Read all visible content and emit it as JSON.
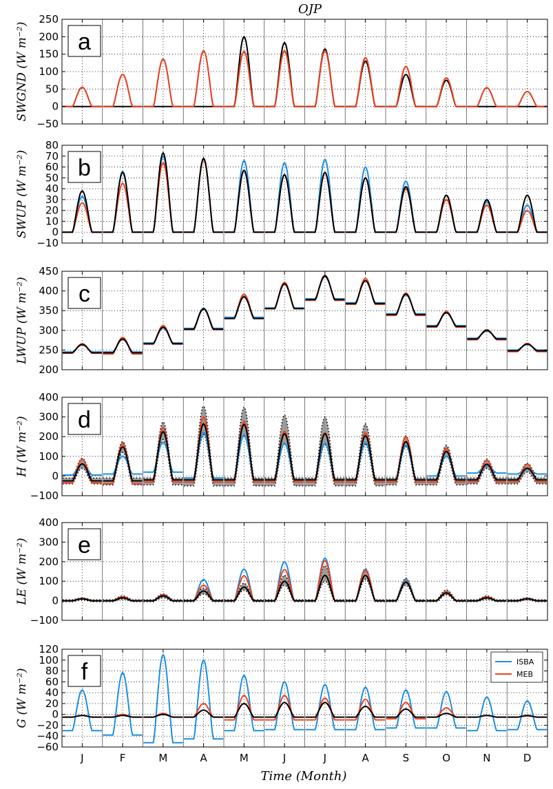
{
  "title": "OJP",
  "xlabel": "Time (Month)",
  "colors": {
    "ISBA": "#1b8fe0",
    "MEB": "#f2401c",
    "Obs": "#000000",
    "Obs_range": "#8c8c8c"
  },
  "chart_data": {
    "type": "line",
    "months": [
      "J",
      "F",
      "M",
      "A",
      "M",
      "J",
      "J",
      "A",
      "S",
      "O",
      "N",
      "D"
    ],
    "legend": {
      "placement": "top-right",
      "panel": "f",
      "entries": [
        "ISBA",
        "MEB"
      ]
    },
    "panels": [
      {
        "id": "a",
        "label": "a",
        "ylabel": "SWGND (W m⁻²)",
        "ylim": [
          -50,
          250
        ],
        "yticks": [
          -50,
          0,
          50,
          100,
          150,
          200,
          250
        ],
        "diurnal_peaks": {
          "Obs": [
            0,
            0,
            0,
            0,
            200,
            183,
            165,
            130,
            92,
            75,
            0,
            0
          ],
          "ISBA": [
            55,
            92,
            136,
            160,
            158,
            160,
            160,
            140,
            115,
            82,
            54,
            43
          ],
          "MEB": [
            55,
            92,
            136,
            160,
            158,
            160,
            160,
            140,
            115,
            82,
            54,
            43
          ]
        },
        "baseline": {
          "Obs": [
            0,
            0,
            0,
            0,
            0,
            0,
            0,
            0,
            0,
            0,
            0,
            0
          ],
          "ISBA": [
            0,
            0,
            0,
            0,
            0,
            0,
            0,
            0,
            0,
            0,
            0,
            0
          ],
          "MEB": [
            0,
            0,
            0,
            0,
            0,
            0,
            0,
            0,
            0,
            0,
            0,
            0
          ]
        }
      },
      {
        "id": "b",
        "label": "b",
        "ylabel": "SWUP (W m⁻²)",
        "ylim": [
          -10,
          80
        ],
        "yticks": [
          -10,
          0,
          10,
          20,
          30,
          40,
          50,
          60,
          70,
          80
        ],
        "diurnal_peaks": {
          "Obs": [
            38,
            55,
            73,
            68,
            57,
            53,
            55,
            50,
            42,
            34,
            30,
            34
          ],
          "ISBA": [
            33,
            56,
            70,
            68,
            66,
            64,
            67,
            60,
            47,
            34,
            28,
            25
          ],
          "MEB": [
            27,
            45,
            64,
            67,
            57,
            53,
            55,
            50,
            40,
            30,
            25,
            20
          ]
        },
        "baseline": {
          "Obs": [
            0,
            0,
            0,
            0,
            0,
            0,
            0,
            0,
            0,
            0,
            0,
            0
          ],
          "ISBA": [
            0,
            0,
            0,
            0,
            0,
            0,
            0,
            0,
            0,
            0,
            0,
            0
          ],
          "MEB": [
            0,
            0,
            0,
            0,
            0,
            0,
            0,
            0,
            0,
            0,
            0,
            0
          ]
        }
      },
      {
        "id": "c",
        "label": "c",
        "ylabel": "LWUP (W m⁻²)",
        "ylim": [
          200,
          450
        ],
        "yticks": [
          200,
          250,
          300,
          350,
          400,
          450
        ],
        "diurnal_peaks": {
          "Obs": [
            264,
            278,
            308,
            355,
            385,
            418,
            438,
            426,
            392,
            345,
            300,
            265
          ],
          "ISBA": [
            263,
            277,
            306,
            356,
            387,
            418,
            436,
            426,
            390,
            344,
            298,
            264
          ],
          "MEB": [
            266,
            282,
            312,
            354,
            392,
            422,
            440,
            432,
            395,
            348,
            302,
            267
          ]
        },
        "baseline": {
          "Obs": [
            243,
            243,
            266,
            303,
            330,
            355,
            378,
            368,
            340,
            310,
            278,
            248
          ],
          "ISBA": [
            245,
            245,
            268,
            305,
            333,
            357,
            380,
            370,
            342,
            312,
            280,
            250
          ],
          "MEB": [
            242,
            240,
            265,
            302,
            330,
            355,
            376,
            366,
            338,
            308,
            276,
            246
          ]
        }
      },
      {
        "id": "d",
        "label": "d",
        "ylabel": "H (W m⁻²)",
        "ylim": [
          -100,
          400
        ],
        "yticks": [
          -100,
          0,
          100,
          200,
          300,
          400
        ],
        "diurnal_peaks": {
          "Obs": [
            62,
            148,
            225,
            265,
            262,
            215,
            215,
            205,
            175,
            125,
            60,
            40
          ],
          "ISBA": [
            58,
            100,
            170,
            222,
            208,
            165,
            165,
            170,
            155,
            100,
            52,
            35
          ],
          "MEB": [
            85,
            165,
            245,
            300,
            278,
            228,
            220,
            220,
            200,
            140,
            80,
            60
          ],
          "Obs_upper": [
            90,
            175,
            275,
            355,
            350,
            310,
            300,
            265,
            205,
            155,
            85,
            65
          ],
          "Obs_lower": [
            40,
            120,
            185,
            210,
            205,
            165,
            160,
            160,
            150,
            100,
            40,
            20
          ]
        },
        "baseline": {
          "Obs": [
            -25,
            -25,
            -20,
            -20,
            -20,
            -20,
            -20,
            -20,
            -20,
            -20,
            -20,
            -20
          ],
          "ISBA": [
            5,
            10,
            20,
            -10,
            -20,
            -20,
            -20,
            -20,
            -20,
            0,
            15,
            10
          ],
          "MEB": [
            -35,
            -40,
            -30,
            -30,
            -30,
            -30,
            -30,
            -30,
            -30,
            -30,
            -30,
            -30
          ],
          "Obs_upper": [
            -10,
            -10,
            -10,
            -10,
            -10,
            -10,
            -10,
            -10,
            -10,
            -10,
            -10,
            -10
          ],
          "Obs_lower": [
            -40,
            -45,
            -45,
            -50,
            -50,
            -50,
            -50,
            -50,
            -45,
            -45,
            -40,
            -40
          ]
        }
      },
      {
        "id": "e",
        "label": "e",
        "ylabel": "LE (W m⁻²)",
        "ylim": [
          -100,
          400
        ],
        "yticks": [
          -100,
          0,
          100,
          200,
          300,
          400
        ],
        "diurnal_peaks": {
          "Obs": [
            10,
            15,
            25,
            50,
            70,
            100,
            130,
            130,
            95,
            40,
            15,
            10
          ],
          "ISBA": [
            10,
            15,
            25,
            108,
            162,
            200,
            218,
            160,
            110,
            40,
            15,
            10
          ],
          "MEB": [
            12,
            20,
            30,
            80,
            128,
            160,
            205,
            155,
            100,
            45,
            20,
            12
          ],
          "Obs_upper": [
            15,
            25,
            35,
            65,
            90,
            130,
            180,
            165,
            115,
            55,
            25,
            15
          ],
          "Obs_lower": [
            5,
            8,
            15,
            35,
            55,
            80,
            100,
            110,
            80,
            30,
            8,
            5
          ]
        },
        "baseline": {
          "Obs": [
            0,
            0,
            0,
            0,
            0,
            0,
            0,
            0,
            0,
            0,
            0,
            0
          ],
          "ISBA": [
            0,
            0,
            0,
            0,
            0,
            0,
            0,
            0,
            0,
            0,
            0,
            0
          ],
          "MEB": [
            0,
            0,
            0,
            0,
            0,
            0,
            0,
            0,
            0,
            0,
            0,
            0
          ],
          "Obs_upper": [
            5,
            5,
            5,
            5,
            5,
            5,
            5,
            5,
            5,
            5,
            5,
            5
          ],
          "Obs_lower": [
            -5,
            -5,
            -5,
            -5,
            -5,
            -5,
            -5,
            -5,
            -5,
            -5,
            -5,
            -5
          ]
        }
      },
      {
        "id": "f",
        "label": "f",
        "ylabel": "G (W m⁻²)",
        "ylim": [
          -60,
          120
        ],
        "yticks": [
          -60,
          -40,
          -20,
          0,
          20,
          40,
          60,
          80,
          100,
          120
        ],
        "diurnal_peaks": {
          "Obs": [
            -2,
            -2,
            0,
            8,
            20,
            22,
            22,
            15,
            10,
            2,
            -2,
            -2
          ],
          "ISBA": [
            45,
            77,
            110,
            100,
            72,
            60,
            55,
            50,
            45,
            42,
            32,
            25
          ],
          "MEB": [
            -2,
            0,
            2,
            20,
            35,
            35,
            30,
            28,
            22,
            12,
            -2,
            -3
          ],
          "Obs_upper": [
            -2,
            -2,
            0,
            8,
            20,
            22,
            22,
            15,
            10,
            2,
            -2,
            -2
          ],
          "Obs_lower": [
            -2,
            -2,
            0,
            8,
            20,
            22,
            22,
            15,
            10,
            2,
            -2,
            -2
          ]
        },
        "baseline": {
          "Obs": [
            -5,
            -5,
            -5,
            -5,
            -5,
            -5,
            -5,
            -5,
            -5,
            -5,
            -5,
            -5
          ],
          "ISBA": [
            -30,
            -38,
            -52,
            -45,
            -30,
            -28,
            -28,
            -28,
            -25,
            -25,
            -30,
            -28
          ],
          "MEB": [
            -5,
            -5,
            -5,
            -5,
            -10,
            -10,
            -10,
            -10,
            -8,
            -5,
            -5,
            -5
          ],
          "Obs_upper": [
            -5,
            -5,
            -5,
            -5,
            -5,
            -5,
            -5,
            -5,
            -5,
            -5,
            -5,
            -5
          ],
          "Obs_lower": [
            -5,
            -5,
            -5,
            -5,
            -5,
            -5,
            -5,
            -5,
            -5,
            -5,
            -5,
            -5
          ]
        }
      }
    ]
  }
}
